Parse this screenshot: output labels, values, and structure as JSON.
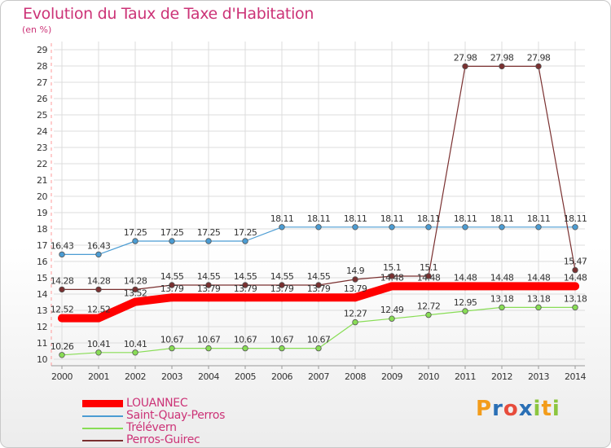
{
  "header": {
    "title": "Evolution du Taux de Taxe d'Habitation",
    "unit": "(en %)"
  },
  "chart_data": {
    "type": "line",
    "title": "Evolution du Taux de Taxe d'Habitation",
    "ylabel": "(en %)",
    "xlabel": "",
    "x": [
      "2000",
      "2001",
      "2002",
      "2003",
      "2004",
      "2005",
      "2006",
      "2007",
      "2008",
      "2009",
      "2010",
      "2011",
      "2012",
      "2013",
      "2014"
    ],
    "ylim": [
      10,
      29
    ],
    "yticks": [
      "10",
      "11",
      "12",
      "13",
      "14",
      "15",
      "16",
      "17",
      "18",
      "19",
      "20",
      "21",
      "22",
      "23",
      "24",
      "25",
      "26",
      "27",
      "28",
      "29"
    ],
    "grid": true,
    "legend_position": "bottom-left",
    "series": [
      {
        "name": "LOUANNEC",
        "color": "#ff0000",
        "values": [
          12.52,
          12.52,
          13.52,
          13.79,
          13.79,
          13.79,
          13.79,
          13.79,
          13.79,
          14.48,
          14.48,
          14.48,
          14.48,
          14.48,
          14.48
        ],
        "labels": [
          "12.52",
          "12.52",
          "13.52",
          "13.79",
          "13.79",
          "13.79",
          "13.79",
          "13.79",
          "13.79",
          "14.48",
          "14.48",
          "14.48",
          "14.48",
          "14.48",
          "14.48"
        ]
      },
      {
        "name": "Saint-Quay-Perros",
        "color": "#4b9cd3",
        "values": [
          16.43,
          16.43,
          17.25,
          17.25,
          17.25,
          17.25,
          18.11,
          18.11,
          18.11,
          18.11,
          18.11,
          18.11,
          18.11,
          18.11,
          18.11
        ],
        "labels": [
          "16.43",
          "16.43",
          "17.25",
          "17.25",
          "17.25",
          "17.25",
          "18.11",
          "18.11",
          "18.11",
          "18.11",
          "18.11",
          "18.11",
          "18.11",
          "18.11",
          "18.11"
        ]
      },
      {
        "name": "Trélévern",
        "color": "#88dd55",
        "values": [
          10.26,
          10.41,
          10.41,
          10.67,
          10.67,
          10.67,
          10.67,
          10.67,
          12.27,
          12.49,
          12.72,
          12.95,
          13.18,
          13.18,
          13.18
        ],
        "labels": [
          "10.26",
          "10.41",
          "10.41",
          "10.67",
          "10.67",
          "10.67",
          "10.67",
          "10.67",
          "12.27",
          "12.49",
          "12.72",
          "12.95",
          "13.18",
          "13.18",
          "13.18"
        ]
      },
      {
        "name": "Perros-Guirec",
        "color": "#7a3030",
        "values": [
          14.28,
          14.28,
          14.28,
          14.55,
          14.55,
          14.55,
          14.55,
          14.55,
          14.9,
          15.1,
          15.1,
          27.98,
          27.98,
          27.98,
          15.47
        ],
        "labels": [
          "14.28",
          "14.28",
          "14.28",
          "14.55",
          "14.55",
          "14.55",
          "14.55",
          "14.55",
          "14.9",
          "15.1",
          "15.1",
          "27.98",
          "27.98",
          "27.98",
          "15.47"
        ]
      }
    ]
  },
  "logo": {
    "letters": [
      "P",
      "r",
      "o",
      "x",
      "i",
      "t",
      "i"
    ],
    "colors": [
      "#f39c1a",
      "#2a6fb5",
      "#e74c3c",
      "#2a6fb5",
      "#8cc63f",
      "#f39c1a",
      "#8cc63f"
    ]
  }
}
